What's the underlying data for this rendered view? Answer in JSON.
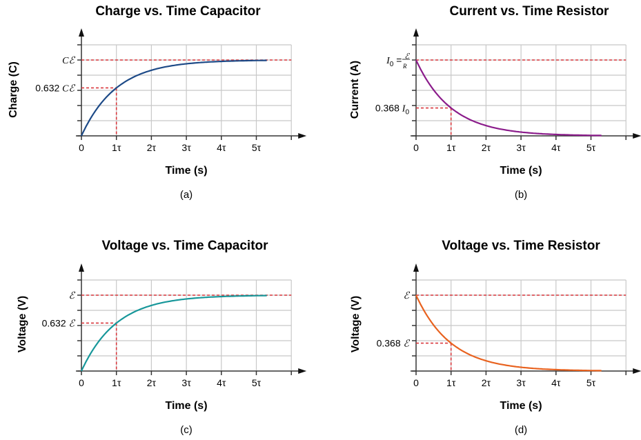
{
  "chart_data": [
    {
      "type": "line",
      "panel_label": "(a)",
      "title": "Charge vs. Time Capacitor",
      "xlabel": "Time (s)",
      "ylabel": "Charge (C)",
      "xlim": [
        0,
        6
      ],
      "ylim": [
        0,
        1.2
      ],
      "grid": true,
      "x_tick_labels": [
        "0",
        "1τ",
        "2τ",
        "3τ",
        "4τ",
        "5τ"
      ],
      "y_tick_labels": [
        {
          "value": 1.0,
          "text": "Cℰ"
        },
        {
          "value": 0.632,
          "text": "0.632 Cℰ"
        }
      ],
      "function": "1 - exp(-t/τ)",
      "x_range": [
        0,
        5.3
      ],
      "reference_lines": {
        "asymptote": 1.0,
        "marker_x": 1,
        "marker_y": 0.632
      },
      "color": "#1d4a87"
    },
    {
      "type": "line",
      "panel_label": "(b)",
      "title": "Current vs. Time Resistor",
      "xlabel": "Time (s)",
      "ylabel": "Current (A)",
      "xlim": [
        0,
        6
      ],
      "ylim": [
        0,
        1.2
      ],
      "grid": true,
      "x_tick_labels": [
        "0",
        "1τ",
        "2τ",
        "3τ",
        "4τ",
        "5τ"
      ],
      "y_tick_labels": [
        {
          "value": 1.0,
          "text": "I",
          "sub": "0",
          "eq": " = ",
          "num": "ℰ",
          "den": "R"
        },
        {
          "value": 0.368,
          "text": "0.368 I",
          "sub": "0"
        }
      ],
      "function": "exp(-t/τ)",
      "x_range": [
        0,
        5.3
      ],
      "reference_lines": {
        "asymptote": 1.0,
        "marker_x": 1,
        "marker_y": 0.368
      },
      "color": "#8b1c8b"
    },
    {
      "type": "line",
      "panel_label": "(c)",
      "title": "Voltage vs. Time Capacitor",
      "xlabel": "Time (s)",
      "ylabel": "Voltage (V)",
      "xlim": [
        0,
        6
      ],
      "ylim": [
        0,
        1.2
      ],
      "grid": true,
      "x_tick_labels": [
        "0",
        "1τ",
        "2τ",
        "3τ",
        "4τ",
        "5τ"
      ],
      "y_tick_labels": [
        {
          "value": 1.0,
          "text": "ℰ"
        },
        {
          "value": 0.632,
          "text": "0.632 ℰ"
        }
      ],
      "function": "1 - exp(-t/τ)",
      "x_range": [
        0,
        5.3
      ],
      "reference_lines": {
        "asymptote": 1.0,
        "marker_x": 1,
        "marker_y": 0.632
      },
      "color": "#17979a"
    },
    {
      "type": "line",
      "panel_label": "(d)",
      "title": "Voltage vs. Time Resistor",
      "xlabel": "Time (s)",
      "ylabel": "Voltage (V)",
      "xlim": [
        0,
        6
      ],
      "ylim": [
        0,
        1.2
      ],
      "grid": true,
      "x_tick_labels": [
        "0",
        "1τ",
        "2τ",
        "3τ",
        "4τ",
        "5τ"
      ],
      "y_tick_labels": [
        {
          "value": 1.0,
          "text": "ℰ"
        },
        {
          "value": 0.368,
          "text": "0.368 ℰ"
        }
      ],
      "function": "exp(-t/τ)",
      "x_range": [
        0,
        5.3
      ],
      "reference_lines": {
        "asymptote": 1.0,
        "marker_x": 1,
        "marker_y": 0.368
      },
      "color": "#e8621f"
    }
  ],
  "colors": {
    "reference": "#d9373c",
    "grid": "#c8c8c8",
    "axis": "#333333"
  }
}
